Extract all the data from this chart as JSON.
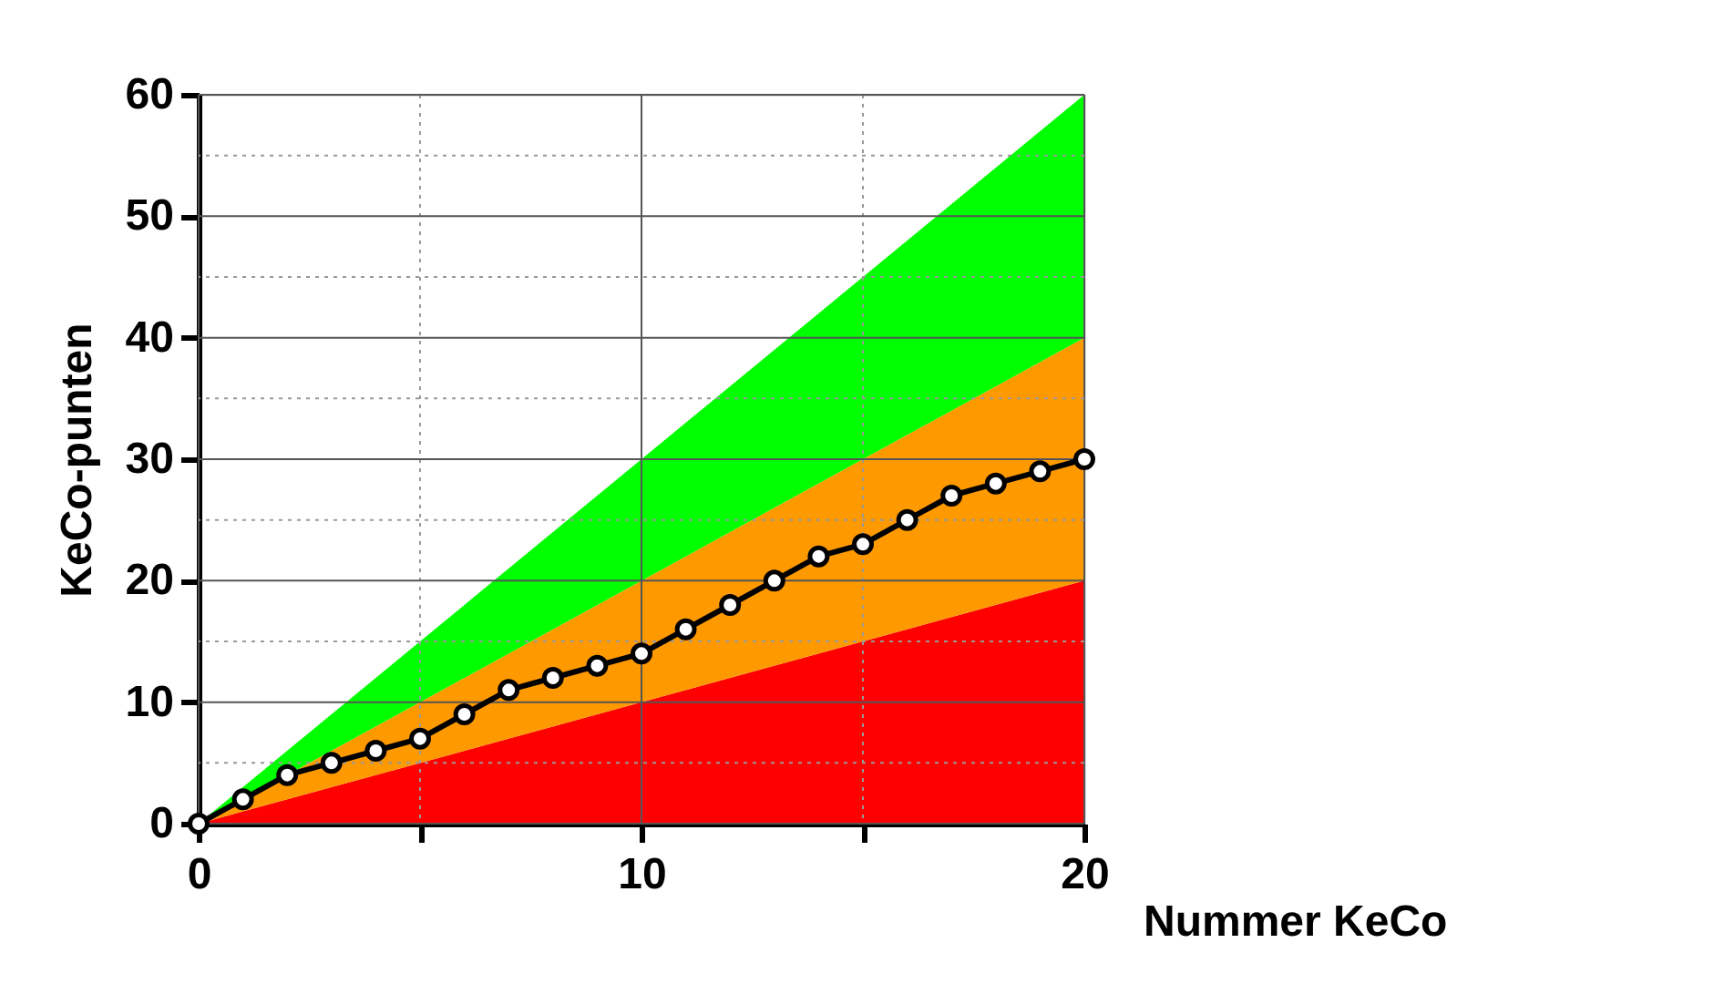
{
  "chart_data": {
    "type": "area",
    "xlabel": "Nummer KeCo",
    "ylabel": "KeCo-punten",
    "xlim": [
      0,
      20
    ],
    "ylim": [
      0,
      60
    ],
    "xticks": [
      0,
      {
        "value": 5,
        "label": null
      },
      10,
      {
        "value": 15,
        "label": null
      },
      20
    ],
    "yticks": [
      0,
      {
        "value": 5,
        "label": null
      },
      10,
      {
        "value": 15,
        "label": null
      },
      20,
      {
        "value": 25,
        "label": null
      },
      30,
      {
        "value": 35,
        "label": null
      },
      40,
      {
        "value": 45,
        "label": null
      },
      50,
      {
        "value": 55,
        "label": null
      },
      60
    ],
    "grid": true,
    "stacked": true,
    "series": [
      {
        "color": "#ff0000",
        "x": [
          0,
          20
        ],
        "values": [
          0,
          20
        ]
      },
      {
        "color": "#ff9900",
        "x": [
          0,
          20
        ],
        "values": [
          0,
          20
        ]
      },
      {
        "color": "#00ff00",
        "x": [
          0,
          20
        ],
        "values": [
          0,
          20
        ]
      },
      {
        "type": "line",
        "color": "#000000",
        "marker": "circle",
        "x": [
          0,
          1,
          2,
          3,
          4,
          5,
          6,
          7,
          8,
          9,
          10,
          11,
          12,
          13,
          14,
          15,
          16,
          17,
          18,
          19,
          20
        ],
        "values": [
          0,
          2,
          4,
          5,
          6,
          7,
          9,
          11,
          12,
          13,
          14,
          16,
          18,
          20,
          22,
          23,
          25,
          27,
          28,
          29,
          30
        ]
      }
    ]
  }
}
